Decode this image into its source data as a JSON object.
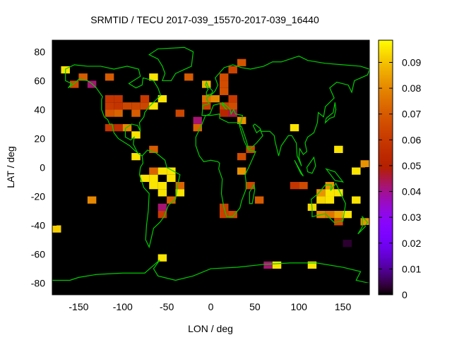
{
  "chart_data": {
    "type": "heatmap",
    "title": "SRMTID / TECU 2017-039_15570-2017-039_16440",
    "xlabel": "LON / deg",
    "ylabel": "LAT / deg",
    "xlim": [
      -180,
      180
    ],
    "ylim": [
      -88,
      88
    ],
    "xticks": [
      "-150",
      "-100",
      "-50",
      "0",
      "50",
      "100",
      "150"
    ],
    "xtick_values": [
      -150,
      -100,
      -50,
      0,
      50,
      100,
      150
    ],
    "yticks": [
      "80",
      "60",
      "40",
      "20",
      "0",
      "-20",
      "-40",
      "-60",
      "-80"
    ],
    "ytick_values": [
      80,
      60,
      40,
      20,
      0,
      -20,
      -40,
      -60,
      -80
    ],
    "colorbar": {
      "range": [
        0,
        0.0986
      ],
      "ticks": [
        "0",
        "0.01",
        "0.02",
        "0.03",
        "0.04",
        "0.05",
        "0.06",
        "0.07",
        "0.08",
        "0.09"
      ],
      "tick_values": [
        0,
        0.01,
        0.02,
        0.03,
        0.04,
        0.05,
        0.06,
        0.07,
        0.08,
        0.09
      ]
    },
    "cell_size_deg": [
      10,
      5
    ],
    "cells_lonmin_latmin_value": [
      [
        -170,
        65,
        0.095
      ],
      [
        -150,
        60,
        0.07
      ],
      [
        -160,
        55,
        0.065
      ],
      [
        -140,
        55,
        0.042
      ],
      [
        -120,
        60,
        0.07
      ],
      [
        -70,
        60,
        0.095
      ],
      [
        -30,
        60,
        0.07
      ],
      [
        -10,
        55,
        0.088
      ],
      [
        -120,
        45,
        0.058
      ],
      [
        -110,
        45,
        0.058
      ],
      [
        -80,
        45,
        0.06
      ],
      [
        -60,
        45,
        0.095
      ],
      [
        -10,
        45,
        0.075
      ],
      [
        -120,
        40,
        0.06
      ],
      [
        -110,
        40,
        0.058
      ],
      [
        -100,
        40,
        0.064
      ],
      [
        -90,
        40,
        0.064
      ],
      [
        -80,
        40,
        0.064
      ],
      [
        -70,
        40,
        0.095
      ],
      [
        -10,
        40,
        0.062
      ],
      [
        -120,
        35,
        0.068
      ],
      [
        -110,
        35,
        0.072
      ],
      [
        -90,
        35,
        0.07
      ],
      [
        -40,
        35,
        0.064
      ],
      [
        -20,
        30,
        0.042
      ],
      [
        -20,
        25,
        0.072
      ],
      [
        -120,
        25,
        0.058
      ],
      [
        -110,
        25,
        0.055
      ],
      [
        -100,
        25,
        0.08
      ],
      [
        -90,
        20,
        0.095
      ],
      [
        -70,
        10,
        0.07
      ],
      [
        -90,
        5,
        0.095
      ],
      [
        30,
        70,
        0.068
      ],
      [
        20,
        65,
        0.063
      ],
      [
        10,
        60,
        0.066
      ],
      [
        10,
        55,
        0.066
      ],
      [
        10,
        50,
        0.067
      ],
      [
        0,
        45,
        0.08
      ],
      [
        20,
        45,
        0.06
      ],
      [
        10,
        40,
        0.062
      ],
      [
        20,
        40,
        0.066
      ],
      [
        10,
        35,
        0.052
      ],
      [
        20,
        35,
        0.045
      ],
      [
        30,
        30,
        0.082
      ],
      [
        90,
        25,
        0.095
      ],
      [
        40,
        10,
        0.064
      ],
      [
        30,
        5,
        0.066
      ],
      [
        140,
        10,
        0.095
      ],
      [
        170,
        0,
        0.082
      ],
      [
        -70,
        -5,
        0.072
      ],
      [
        -60,
        -5,
        0.095
      ],
      [
        -50,
        -5,
        0.095
      ],
      [
        -80,
        -10,
        0.095
      ],
      [
        -70,
        -10,
        0.095
      ],
      [
        -50,
        -10,
        0.095
      ],
      [
        -70,
        -15,
        0.095
      ],
      [
        -60,
        -15,
        0.095
      ],
      [
        -40,
        -15,
        0.072
      ],
      [
        -60,
        -20,
        0.095
      ],
      [
        -40,
        -20,
        0.095
      ],
      [
        -140,
        -25,
        0.08
      ],
      [
        -50,
        -25,
        0.072
      ],
      [
        -60,
        -30,
        0.042
      ],
      [
        -60,
        -35,
        0.06
      ],
      [
        -180,
        -45,
        0.092
      ],
      [
        -60,
        -65,
        0.095
      ],
      [
        30,
        -5,
        0.082
      ],
      [
        160,
        -5,
        0.095
      ],
      [
        40,
        -15,
        0.064
      ],
      [
        50,
        -25,
        0.07
      ],
      [
        10,
        -30,
        0.062
      ],
      [
        10,
        -35,
        0.062
      ],
      [
        20,
        -35,
        0.065
      ],
      [
        90,
        -15,
        0.058
      ],
      [
        100,
        -15,
        0.065
      ],
      [
        130,
        -15,
        0.082
      ],
      [
        120,
        -20,
        0.082
      ],
      [
        130,
        -20,
        0.095
      ],
      [
        140,
        -20,
        0.095
      ],
      [
        120,
        -25,
        0.093
      ],
      [
        130,
        -25,
        0.095
      ],
      [
        160,
        -25,
        0.095
      ],
      [
        110,
        -30,
        0.093
      ],
      [
        120,
        -35,
        0.08
      ],
      [
        130,
        -35,
        0.076
      ],
      [
        140,
        -35,
        0.085
      ],
      [
        150,
        -35,
        0.095
      ],
      [
        140,
        -40,
        0.065
      ],
      [
        170,
        -40,
        0.082
      ],
      [
        150,
        -55,
        0.003
      ],
      [
        60,
        -70,
        0.042
      ],
      [
        70,
        -70,
        0.095
      ],
      [
        110,
        -70,
        0.095
      ]
    ]
  },
  "colors": {
    "coastline": "#00cc00",
    "background": "#000000"
  }
}
